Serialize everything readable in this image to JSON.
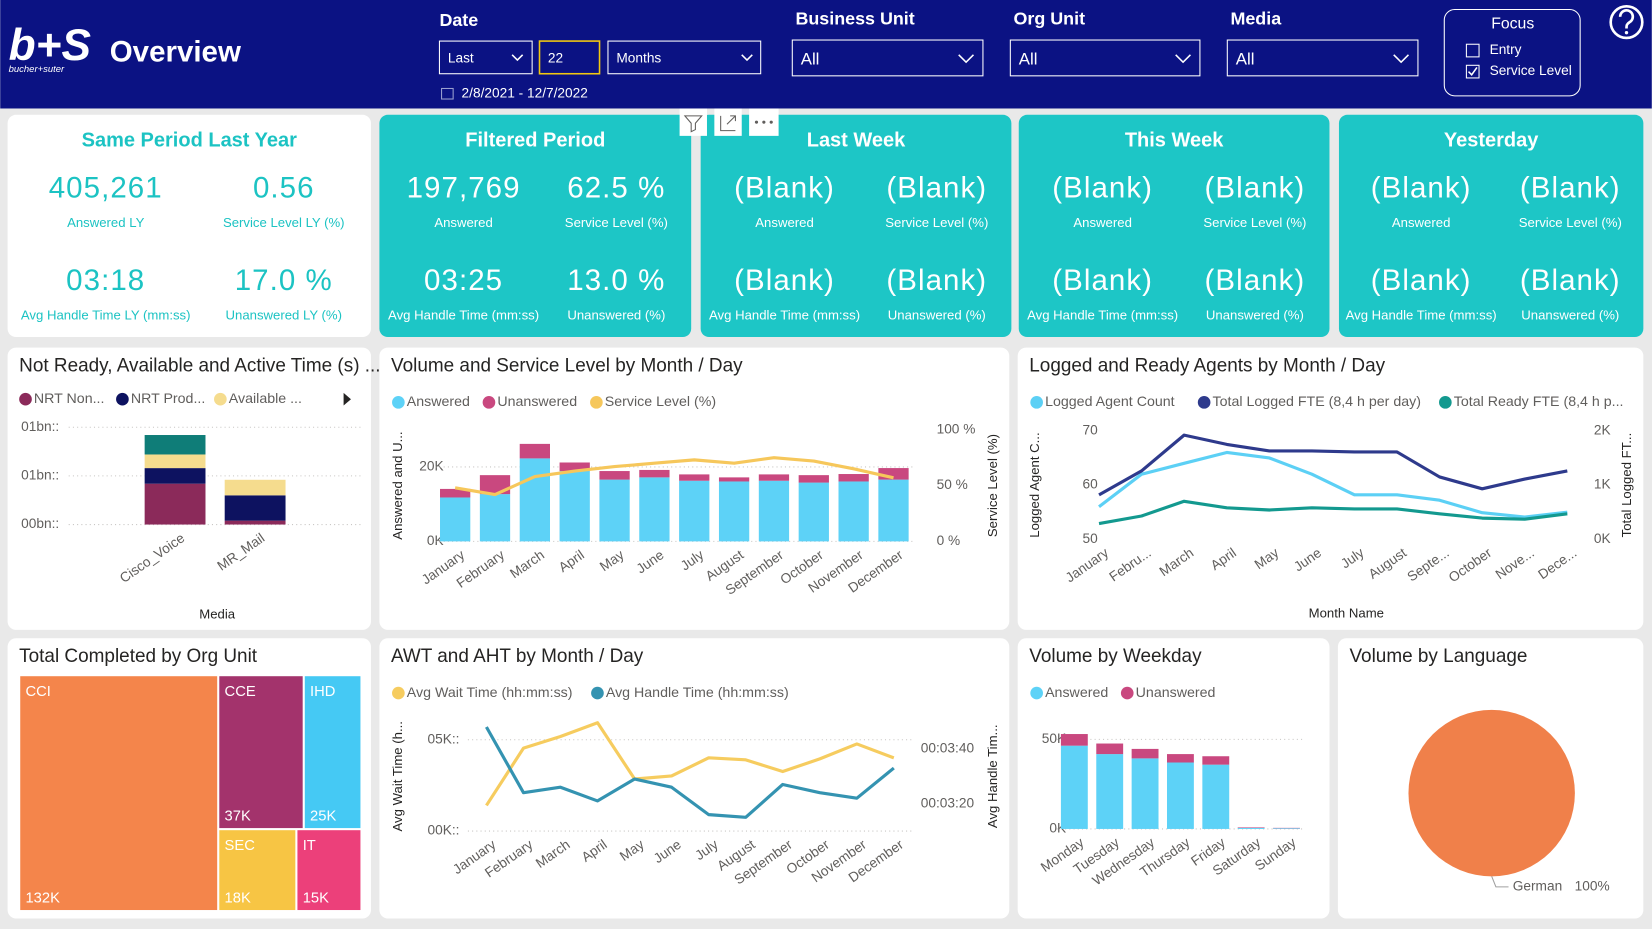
{
  "header": {
    "logo_mark": "b+S",
    "logo_text": "bucher+suter",
    "title": "Overview"
  },
  "filters": {
    "date": {
      "label": "Date",
      "mode": "Last",
      "count": "22",
      "unit": "Months",
      "range": "2/8/2021 - 12/7/2022"
    },
    "business_unit": {
      "label": "Business Unit",
      "value": "All"
    },
    "org_unit": {
      "label": "Org Unit",
      "value": "All"
    },
    "media": {
      "label": "Media",
      "value": "All"
    },
    "focus": {
      "title": "Focus",
      "options": [
        {
          "label": "Entry",
          "checked": false
        },
        {
          "label": "Service Level",
          "checked": true
        }
      ]
    }
  },
  "kpis": [
    {
      "title": "Same Period Last Year",
      "metrics": [
        {
          "value": "405,261",
          "label": "Answered LY"
        },
        {
          "value": "0.56",
          "label": "Service Level LY (%)"
        },
        {
          "value": "03:18",
          "label": "Avg Handle Time LY (mm:ss)"
        },
        {
          "value": "17.0 %",
          "label": "Unanswered LY (%)"
        }
      ]
    },
    {
      "title": "Filtered Period",
      "metrics": [
        {
          "value": "197,769",
          "label": "Answered"
        },
        {
          "value": "62.5 %",
          "label": "Service Level (%)"
        },
        {
          "value": "03:25",
          "label": "Avg Handle Time (mm:ss)"
        },
        {
          "value": "13.0 %",
          "label": "Unanswered (%)"
        }
      ]
    },
    {
      "title": "Last Week",
      "metrics": [
        {
          "value": "(Blank)",
          "label": "Answered"
        },
        {
          "value": "(Blank)",
          "label": "Service Level (%)"
        },
        {
          "value": "(Blank)",
          "label": "Avg Handle Time (mm:ss)"
        },
        {
          "value": "(Blank)",
          "label": "Unanswered (%)"
        }
      ]
    },
    {
      "title": "This Week",
      "metrics": [
        {
          "value": "(Blank)",
          "label": "Answered"
        },
        {
          "value": "(Blank)",
          "label": "Service Level (%)"
        },
        {
          "value": "(Blank)",
          "label": "Avg Handle Time (mm:ss)"
        },
        {
          "value": "(Blank)",
          "label": "Unanswered (%)"
        }
      ]
    },
    {
      "title": "Yesterday",
      "metrics": [
        {
          "value": "(Blank)",
          "label": "Answered"
        },
        {
          "value": "(Blank)",
          "label": "Service Level (%)"
        },
        {
          "value": "(Blank)",
          "label": "Avg Handle Time (mm:ss)"
        },
        {
          "value": "(Blank)",
          "label": "Unanswered (%)"
        }
      ]
    }
  ],
  "chart_data": [
    {
      "type": "bar",
      "stacked": true,
      "title": "Not Ready, Available and Active Time (s) ...",
      "x_label": "Media",
      "categories": [
        "Cisco_Voice",
        "MR_Mail"
      ],
      "series": [
        {
          "name": "NRT Non...",
          "color": "#8b2a5a",
          "values": [
            0.42,
            0.04
          ]
        },
        {
          "name": "NRT Prod...",
          "color": "#0d1260",
          "values": [
            0.16,
            0.26
          ]
        },
        {
          "name": "Available ...",
          "color": "#f5dc8e",
          "values": [
            0.14,
            0.16
          ]
        },
        {
          "color": "#0f7d78",
          "values": [
            0.2,
            0
          ]
        }
      ],
      "ylim": [
        0,
        1.05
      ],
      "yticks": [
        {
          "value": 0,
          "label": "00bn::"
        },
        {
          "value": 0.5,
          "label": "01bn::"
        },
        {
          "value": 1,
          "label": "01bn::"
        }
      ],
      "grid": true
    },
    {
      "type": "bar",
      "stacked": true,
      "title": "Volume and Service Level by Month / Day",
      "y_label": "Answered and U...",
      "y2_label": "Service Level (%)",
      "categories": [
        "January",
        "February",
        "March",
        "April",
        "May",
        "June",
        "July",
        "August",
        "September",
        "October",
        "November",
        "December"
      ],
      "series": [
        {
          "name": "Answered",
          "color": "#5dd2f7",
          "values": [
            11800,
            12700,
            22300,
            18900,
            16600,
            17200,
            16300,
            16100,
            16300,
            15800,
            16100,
            16600
          ]
        },
        {
          "name": "Unanswered",
          "color": "#c9487f",
          "values": [
            2300,
            5100,
            3900,
            2300,
            2300,
            2000,
            1700,
            1100,
            1700,
            2000,
            2000,
            3100
          ]
        },
        {
          "name": "Service Level (%)",
          "color": "#f6c75b",
          "type": "line",
          "axis": "y2",
          "values": [
            48,
            42,
            58,
            63,
            67,
            70,
            73,
            70,
            75,
            72,
            65,
            57
          ]
        }
      ],
      "ylim": [
        0,
        30000
      ],
      "yticks": [
        {
          "value": 0,
          "label": "0K"
        },
        {
          "value": 20000,
          "label": "20K"
        }
      ],
      "y2lim": [
        0,
        100
      ],
      "y2ticks": [
        {
          "value": 0,
          "label": "0 %"
        },
        {
          "value": 50,
          "label": "50 %"
        },
        {
          "value": 100,
          "label": "100 %"
        }
      ],
      "grid": true
    },
    {
      "type": "line",
      "title": "Logged and Ready Agents by Month / Day",
      "x_label": "Month Name",
      "y_label": "Logged Agent C...",
      "y2_label": "Total Logged FT...",
      "categories": [
        "January",
        "Febru...",
        "March",
        "April",
        "May",
        "June",
        "July",
        "August",
        "Septe...",
        "October",
        "Nove...",
        "Dece..."
      ],
      "series": [
        {
          "name": "Logged Agent Count",
          "color": "#5cd0f5",
          "values": [
            56,
            62,
            64,
            66,
            65,
            62,
            58.2,
            58.2,
            57.2,
            54.9,
            54.1,
            55
          ]
        },
        {
          "name": "Total Logged FTE (8,4 h per day)",
          "color": "#2e3a8c",
          "axis": "y2",
          "values": [
            820,
            1260,
            1920,
            1750,
            1630,
            1630,
            1610,
            1610,
            1150,
            930,
            1110,
            1260
          ]
        },
        {
          "name": "Total Ready FTE (8,4 h p...",
          "color": "#13998f",
          "axis": "y2",
          "values": [
            290,
            430,
            700,
            580,
            540,
            580,
            560,
            560,
            470,
            390,
            370,
            470
          ]
        }
      ],
      "ylim": [
        50,
        70
      ],
      "yticks": [
        50,
        60,
        70
      ],
      "y2lim": [
        0,
        2000
      ],
      "y2ticks": [
        {
          "value": 0,
          "label": "0K"
        },
        {
          "value": 1000,
          "label": "1K"
        },
        {
          "value": 2000,
          "label": "2K"
        }
      ],
      "grid": false
    },
    {
      "type": "treemap",
      "title": "Total Completed by Org Unit",
      "categories": [
        "CCI",
        "CCE",
        "IHD",
        "SEC",
        "IT"
      ],
      "values": [
        132000,
        37000,
        25000,
        18000,
        15000
      ],
      "value_labels": [
        "132K",
        "37K",
        "25K",
        "18K",
        "15K"
      ],
      "colors": [
        "#f4854b",
        "#a3336c",
        "#45c9f4",
        "#f7c544",
        "#ec407a"
      ]
    },
    {
      "type": "line",
      "title": "AWT and AHT by Month / Day",
      "y_label": "Avg Wait Time (h...",
      "y2_label": "Avg Handle Tim...",
      "categories": [
        "January",
        "February",
        "March",
        "April",
        "May",
        "June",
        "July",
        "August",
        "September",
        "October",
        "November",
        "December"
      ],
      "series": [
        {
          "name": "Avg Wait Time (hh:mm:ss)",
          "color": "#f6cc5f",
          "values": [
            1400,
            4540,
            5180,
            5930,
            2850,
            3020,
            4010,
            3900,
            3260,
            3950,
            4770,
            4010
          ]
        },
        {
          "name": "Avg Handle Time (hh:mm:ss)",
          "color": "#3493b1",
          "axis": "y2",
          "values": [
            228,
            204,
            206,
            201,
            209,
            206,
            196,
            195,
            207,
            204,
            202,
            213
          ]
        }
      ],
      "ylim": [
        0,
        6000
      ],
      "yticks": [
        {
          "value": 0,
          "label": "00K::"
        },
        {
          "value": 5000,
          "label": "05K::"
        }
      ],
      "y2lim": [
        190,
        230
      ],
      "y2ticks": [
        {
          "value": 200,
          "label": "00:03:20"
        },
        {
          "value": 220,
          "label": "00:03:40"
        }
      ],
      "grid": true
    },
    {
      "type": "bar",
      "stacked": true,
      "title": "Volume by Weekday",
      "categories": [
        "Monday",
        "Tuesday",
        "Wednesday",
        "Thursday",
        "Friday",
        "Saturday",
        "Sunday"
      ],
      "series": [
        {
          "name": "Answered",
          "color": "#5dd2f7",
          "values": [
            46500,
            41800,
            39400,
            37100,
            35900,
            600,
            400
          ]
        },
        {
          "name": "Unanswered",
          "color": "#c9487f",
          "values": [
            6500,
            5900,
            5300,
            4700,
            4700,
            300,
            200
          ]
        }
      ],
      "ylim": [
        0,
        60000
      ],
      "yticks": [
        {
          "value": 0,
          "label": "0K"
        },
        {
          "value": 50000,
          "label": "50K"
        }
      ],
      "grid": true
    },
    {
      "type": "pie",
      "title": "Volume by Language",
      "categories": [
        "German"
      ],
      "values": [
        100
      ],
      "value_labels": [
        "100%"
      ],
      "colors": [
        "#f0804a"
      ]
    }
  ]
}
